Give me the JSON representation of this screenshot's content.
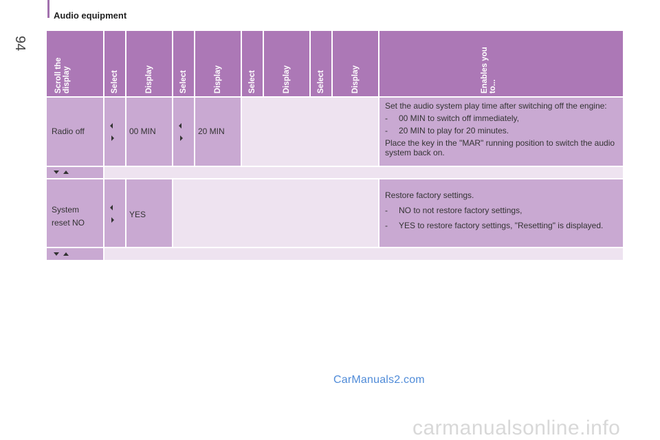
{
  "page": {
    "number": "94",
    "section_title": "Audio equipment"
  },
  "header": {
    "col1": [
      "Scroll the",
      "display"
    ],
    "col2": "Select",
    "col3": "Display",
    "col4": "Select",
    "col5": "Display",
    "col6": "Select",
    "col7": "Display",
    "col8": "Select",
    "col9": "Display",
    "col10": [
      "Enables you",
      "to..."
    ]
  },
  "rows": {
    "radio_off": {
      "label": "Radio off",
      "display1": "00 MIN",
      "display2": "20 MIN",
      "desc_intro": "Set the audio system play time after switching off the engine:",
      "items": [
        "00 MIN to switch off immediately,",
        "20 MIN to play for 20 minutes."
      ],
      "desc_outro": "Place the key in the \"MAR\" running position to switch the audio system back on."
    },
    "system_reset": {
      "label_line1": "System",
      "label_line2": "reset NO",
      "display1": "YES",
      "desc_intro": "Restore factory settings.",
      "items": [
        "NO to not restore factory settings,",
        "YES to restore factory settings, \"Resetting\" is displayed."
      ]
    }
  },
  "bullet_dash": "-",
  "watermark": "CarManuals2.com",
  "footer_mark": "carmanualsonline.info"
}
